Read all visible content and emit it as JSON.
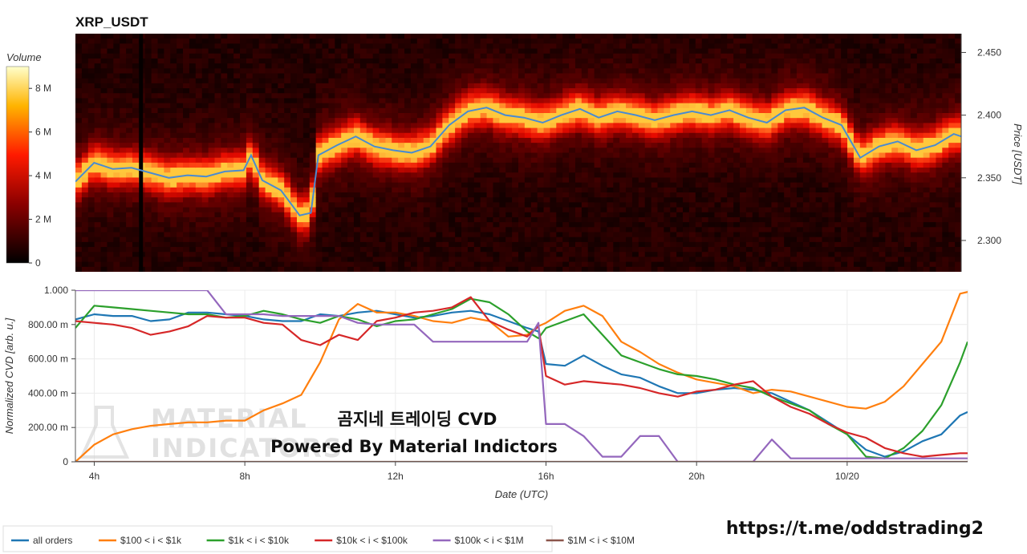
{
  "heatmap": {
    "title": "XRP_USDT",
    "colorbar_label": "Volume",
    "colorbar_ticks": [
      "0",
      "2 M",
      "4 M",
      "6 M",
      "8 M"
    ],
    "price_axis_label": "Price [USDT]",
    "price_ticks": [
      "2.300",
      "2.350",
      "2.400",
      "2.450"
    ]
  },
  "cvd": {
    "y_axis_label": "Normalized CVD [arb. u.]",
    "y_ticks": [
      "0",
      "200.00 m",
      "400.00 m",
      "600.00 m",
      "800.00 m",
      "1.000"
    ],
    "x_axis_label": "Date (UTC)",
    "x_ticks": [
      "4h",
      "8h",
      "12h",
      "16h",
      "20h",
      "10/20"
    ]
  },
  "overlay": {
    "line1": "곰지네 트레이딩 CVD",
    "line2": "Powered By Material Indictors",
    "watermark_line1": "MATERIAL",
    "watermark_line2": "INDICATORS"
  },
  "footer": {
    "url": "https://t.me/oddstrading2"
  },
  "legend": [
    {
      "name": "all orders",
      "color": "#1f77b4"
    },
    {
      "name": "$100 < i < $1k",
      "color": "#ff7f0e"
    },
    {
      "name": "$1k < i < $10k",
      "color": "#2ca02c"
    },
    {
      "name": "$10k < i < $100k",
      "color": "#d62728"
    },
    {
      "name": "$100k < i < $1M",
      "color": "#9467bd"
    },
    {
      "name": "$1M < i < $10M",
      "color": "#8c564b"
    }
  ],
  "chart_data": [
    {
      "type": "heatmap",
      "title": "XRP_USDT",
      "xlabel": "",
      "ylabel": "Price [USDT]",
      "colorbar": {
        "label": "Volume",
        "range": [
          0,
          9000000
        ],
        "ticks": [
          0,
          2000000,
          4000000,
          6000000,
          8000000
        ]
      },
      "x_range_hours": [
        3.5,
        27.2
      ],
      "ylim": [
        2.275,
        2.465
      ],
      "price_series": {
        "name": "price",
        "color": "#3b7fc4",
        "x": [
          3.5,
          4.0,
          4.5,
          5.0,
          5.5,
          6.0,
          6.5,
          7.0,
          7.5,
          8.0,
          8.2,
          8.5,
          9.0,
          9.5,
          9.8,
          10.0,
          10.5,
          11.0,
          11.5,
          12.0,
          12.5,
          13.0,
          13.5,
          14.0,
          14.5,
          15.0,
          15.5,
          16.0,
          16.5,
          17.0,
          17.5,
          18.0,
          18.5,
          19.0,
          19.5,
          20.0,
          20.5,
          21.0,
          21.5,
          22.0,
          22.5,
          23.0,
          23.5,
          24.0,
          24.5,
          25.0,
          25.5,
          26.0,
          26.5,
          27.0,
          27.2
        ],
        "y": [
          2.347,
          2.362,
          2.357,
          2.358,
          2.354,
          2.35,
          2.352,
          2.351,
          2.355,
          2.356,
          2.368,
          2.348,
          2.34,
          2.32,
          2.322,
          2.368,
          2.376,
          2.383,
          2.375,
          2.372,
          2.37,
          2.375,
          2.392,
          2.403,
          2.406,
          2.4,
          2.398,
          2.394,
          2.4,
          2.405,
          2.398,
          2.403,
          2.4,
          2.396,
          2.4,
          2.403,
          2.4,
          2.404,
          2.398,
          2.394,
          2.404,
          2.406,
          2.398,
          2.392,
          2.366,
          2.375,
          2.379,
          2.372,
          2.376,
          2.385,
          2.383
        ]
      }
    },
    {
      "type": "line",
      "title": "",
      "xlabel": "Date (UTC)",
      "ylabel": "Normalized CVD [arb. u.]",
      "x_ticks": [
        "4h",
        "8h",
        "12h",
        "16h",
        "20h",
        "10/20"
      ],
      "ylim": [
        0,
        1.0
      ],
      "grid": true,
      "legend_position": "bottom",
      "x": [
        3.5,
        4.0,
        4.5,
        5.0,
        5.5,
        6.0,
        6.5,
        7.0,
        7.5,
        8.0,
        8.5,
        9.0,
        9.5,
        10.0,
        10.5,
        11.0,
        11.5,
        12.0,
        12.5,
        13.0,
        13.5,
        14.0,
        14.5,
        15.0,
        15.5,
        15.8,
        16.0,
        16.5,
        17.0,
        17.5,
        18.0,
        18.5,
        19.0,
        19.5,
        20.0,
        20.5,
        21.0,
        21.5,
        22.0,
        22.5,
        23.0,
        23.5,
        24.0,
        24.5,
        25.0,
        25.5,
        26.0,
        26.5,
        27.0,
        27.2
      ],
      "series": [
        {
          "name": "all orders",
          "color": "#1f77b4",
          "values": [
            0.83,
            0.86,
            0.85,
            0.85,
            0.82,
            0.83,
            0.87,
            0.87,
            0.86,
            0.85,
            0.83,
            0.82,
            0.82,
            0.86,
            0.85,
            0.87,
            0.88,
            0.86,
            0.84,
            0.85,
            0.87,
            0.88,
            0.86,
            0.82,
            0.78,
            0.76,
            0.57,
            0.56,
            0.62,
            0.56,
            0.51,
            0.49,
            0.44,
            0.4,
            0.4,
            0.42,
            0.43,
            0.42,
            0.4,
            0.35,
            0.3,
            0.23,
            0.16,
            0.07,
            0.03,
            0.06,
            0.12,
            0.16,
            0.27,
            0.29
          ]
        },
        {
          "name": "$100 < i < $1k",
          "color": "#ff7f0e",
          "values": [
            0.0,
            0.1,
            0.16,
            0.19,
            0.21,
            0.22,
            0.23,
            0.23,
            0.24,
            0.24,
            0.3,
            0.34,
            0.39,
            0.58,
            0.83,
            0.92,
            0.87,
            0.87,
            0.85,
            0.82,
            0.81,
            0.84,
            0.82,
            0.73,
            0.74,
            0.79,
            0.81,
            0.88,
            0.91,
            0.85,
            0.7,
            0.64,
            0.57,
            0.52,
            0.48,
            0.46,
            0.44,
            0.4,
            0.42,
            0.41,
            0.38,
            0.35,
            0.32,
            0.31,
            0.35,
            0.44,
            0.57,
            0.7,
            0.98,
            0.99
          ]
        },
        {
          "name": "$1k < i < $10k",
          "color": "#2ca02c",
          "values": [
            0.78,
            0.91,
            0.9,
            0.89,
            0.88,
            0.87,
            0.86,
            0.86,
            0.84,
            0.85,
            0.88,
            0.86,
            0.83,
            0.81,
            0.85,
            0.83,
            0.79,
            0.82,
            0.83,
            0.86,
            0.89,
            0.95,
            0.93,
            0.86,
            0.76,
            0.72,
            0.78,
            0.82,
            0.86,
            0.74,
            0.62,
            0.58,
            0.54,
            0.51,
            0.5,
            0.48,
            0.45,
            0.43,
            0.38,
            0.34,
            0.3,
            0.22,
            0.16,
            0.03,
            0.02,
            0.08,
            0.18,
            0.33,
            0.58,
            0.7
          ]
        },
        {
          "name": "$10k < i < $100k",
          "color": "#d62728",
          "values": [
            0.82,
            0.81,
            0.8,
            0.78,
            0.74,
            0.76,
            0.79,
            0.85,
            0.84,
            0.84,
            0.81,
            0.8,
            0.71,
            0.68,
            0.74,
            0.71,
            0.82,
            0.84,
            0.87,
            0.88,
            0.9,
            0.96,
            0.82,
            0.77,
            0.73,
            0.79,
            0.5,
            0.45,
            0.47,
            0.46,
            0.45,
            0.43,
            0.4,
            0.38,
            0.41,
            0.42,
            0.45,
            0.47,
            0.38,
            0.32,
            0.28,
            0.22,
            0.17,
            0.14,
            0.08,
            0.05,
            0.03,
            0.04,
            0.05,
            0.05
          ]
        },
        {
          "name": "$100k < i < $1M",
          "color": "#9467bd",
          "values": [
            1.0,
            1.0,
            1.0,
            1.0,
            1.0,
            1.0,
            1.0,
            1.0,
            0.86,
            0.86,
            0.86,
            0.85,
            0.85,
            0.85,
            0.85,
            0.81,
            0.8,
            0.8,
            0.8,
            0.7,
            0.7,
            0.7,
            0.7,
            0.7,
            0.7,
            0.81,
            0.22,
            0.22,
            0.15,
            0.03,
            0.03,
            0.15,
            0.15,
            0.0,
            0.0,
            0.0,
            0.0,
            0.0,
            0.13,
            0.02,
            0.02,
            0.02,
            0.02,
            0.02,
            0.02,
            0.02,
            0.02,
            0.02,
            0.02,
            0.02
          ]
        },
        {
          "name": "$1M < i < $10M",
          "color": "#8c564b",
          "values": [
            0.0,
            0.0,
            0.0,
            0.0,
            0.0,
            0.0,
            0.0,
            0.0,
            0.0,
            0.0,
            0.0,
            0.0,
            0.0,
            0.0,
            0.0,
            0.0,
            0.0,
            0.0,
            0.0,
            0.0,
            0.0,
            0.0,
            0.0,
            0.0,
            0.0,
            0.0,
            0.0,
            0.0,
            0.0,
            0.0,
            0.0,
            0.0,
            0.0,
            0.0,
            0.0,
            0.0,
            0.0,
            0.0,
            0.0,
            0.0,
            0.0,
            0.0,
            0.0,
            0.0,
            0.0,
            0.0,
            0.0,
            0.0,
            0.0,
            0.0
          ]
        }
      ]
    }
  ]
}
